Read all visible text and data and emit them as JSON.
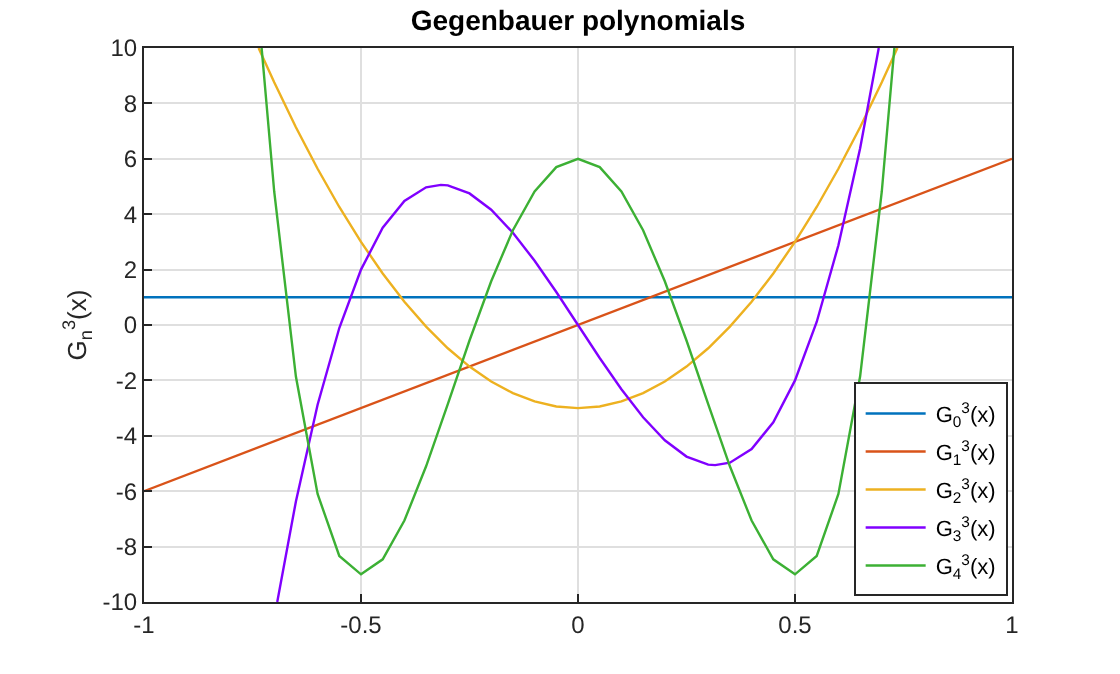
{
  "chart_data": {
    "type": "line",
    "title": "Gegenbauer polynomials",
    "ylabel": "G$_{n}$$^{3}$(x)",
    "xlim": [
      -1,
      1
    ],
    "xticks": [
      -1,
      -0.5,
      0,
      0.5,
      1
    ],
    "ylim": [
      -10,
      10
    ],
    "yticks": [
      -10,
      -8,
      -6,
      -4,
      -2,
      0,
      2,
      4,
      6,
      8,
      10
    ],
    "grid": true,
    "legend": "bottom right",
    "marker": "none",
    "line_style": "solid",
    "series": [
      {
        "name": "G$_{0}$$^{3}$(x)",
        "color": "#0072bd",
        "x": [
          -1,
          1
        ],
        "values": [
          1,
          1
        ]
      },
      {
        "name": "G$_{1}$$^{3}$(x)",
        "color": "#d95319",
        "x": [
          -1,
          1
        ],
        "values": [
          -6,
          6
        ]
      },
      {
        "name": "G$_{2}$$^{3}$(x)",
        "color": "#edb120",
        "x": [
          -0.736,
          -0.7,
          -0.65,
          -0.6,
          -0.55,
          -0.5,
          -0.45,
          -0.4,
          -0.35,
          -0.3,
          -0.25,
          -0.2,
          -0.15,
          -0.1,
          -0.05,
          0,
          0.05,
          0.1,
          0.15,
          0.2,
          0.25,
          0.3,
          0.35,
          0.4,
          0.45,
          0.5,
          0.55,
          0.6,
          0.65,
          0.7,
          0.736
        ],
        "values": [
          10,
          8.76,
          7.14,
          5.64,
          4.26,
          3,
          1.86,
          0.84,
          -0.06,
          -0.84,
          -1.5,
          -2.04,
          -2.46,
          -2.76,
          -2.94,
          -3,
          -2.94,
          -2.76,
          -2.46,
          -2.04,
          -1.5,
          -0.84,
          -0.06,
          0.84,
          1.86,
          3,
          4.26,
          5.64,
          7.14,
          8.76,
          10
        ]
      },
      {
        "name": "G$_{3}$$^{3}$(x)",
        "color": "#8000ff",
        "x": [
          -0.693,
          -0.65,
          -0.6,
          -0.55,
          -0.5,
          -0.45,
          -0.4,
          -0.35,
          -0.316,
          -0.3,
          -0.25,
          -0.2,
          -0.15,
          -0.1,
          -0.05,
          0,
          0.05,
          0.1,
          0.15,
          0.2,
          0.25,
          0.3,
          0.316,
          0.35,
          0.4,
          0.45,
          0.5,
          0.55,
          0.6,
          0.65,
          0.693
        ],
        "values": [
          -10,
          -6.37,
          -2.88,
          -0.11,
          2,
          3.51,
          4.48,
          4.97,
          5.06,
          5.04,
          4.75,
          4.16,
          3.33,
          2.32,
          1.19,
          0,
          -1.19,
          -2.32,
          -3.33,
          -4.16,
          -4.75,
          -5.04,
          -5.06,
          -4.97,
          -4.48,
          -3.51,
          -2,
          0.11,
          2.88,
          6.37,
          10
        ]
      },
      {
        "name": "G$_{4}$$^{3}$(x)",
        "color": "#3cb034",
        "x": [
          -0.729,
          -0.7,
          -0.65,
          -0.6,
          -0.55,
          -0.5,
          -0.45,
          -0.4,
          -0.35,
          -0.3,
          -0.25,
          -0.2,
          -0.15,
          -0.1,
          -0.05,
          0,
          0.05,
          0.1,
          0.15,
          0.2,
          0.25,
          0.3,
          0.35,
          0.4,
          0.45,
          0.5,
          0.55,
          0.6,
          0.65,
          0.7,
          0.729
        ],
        "values": [
          10,
          4.82,
          -1.86,
          -6.1,
          -8.34,
          -9,
          -8.46,
          -7.06,
          -5.1,
          -2.86,
          -0.56,
          1.58,
          3.42,
          4.82,
          5.7,
          6,
          5.7,
          4.82,
          3.42,
          1.58,
          -0.56,
          -2.86,
          -5.1,
          -7.06,
          -8.46,
          -9,
          -8.34,
          -6.1,
          -1.86,
          4.82,
          10
        ]
      }
    ]
  }
}
